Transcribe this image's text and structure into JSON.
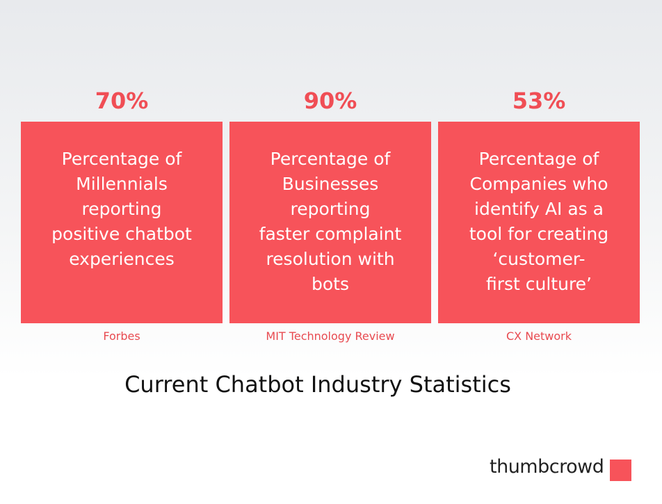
{
  "cards": [
    {
      "stat": "70%",
      "lines": [
        "Percentage of",
        "Millennials",
        "reporting",
        "positive chatbot",
        "experiences"
      ],
      "source": "Forbes"
    },
    {
      "stat": "90%",
      "lines": [
        "Percentage of",
        "Businesses",
        "reporting",
        "faster complaint",
        "resolution with",
        "bots"
      ],
      "source": "MIT Technology Review"
    },
    {
      "stat": "53%",
      "lines": [
        "Percentage of",
        "Companies who",
        "identify AI as a",
        "tool for creating",
        "‘customer-",
        "first culture’"
      ],
      "source": "CX Network"
    }
  ],
  "title": "Current Chatbot Industry Statistics",
  "brand": "thumbcrowd"
}
